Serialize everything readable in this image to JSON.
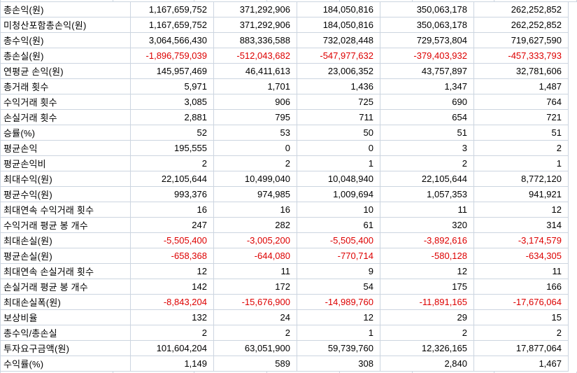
{
  "colors": {
    "negative_text": "#dd0000",
    "default_text": "#000000",
    "gridline": "#ccd5e0",
    "background": "#ffffff"
  },
  "table": {
    "rows": [
      {
        "label": "총손익(원)",
        "values": [
          "1,167,659,752",
          "371,292,906",
          "184,050,816",
          "350,063,178",
          "262,252,852"
        ]
      },
      {
        "label": "미청산포함총손익(원)",
        "values": [
          "1,167,659,752",
          "371,292,906",
          "184,050,816",
          "350,063,178",
          "262,252,852"
        ]
      },
      {
        "label": "총수익(원)",
        "values": [
          "3,064,566,430",
          "883,336,588",
          "732,028,448",
          "729,573,804",
          "719,627,590"
        ]
      },
      {
        "label": "총손실(원)",
        "values": [
          "-1,896,759,039",
          "-512,043,682",
          "-547,977,632",
          "-379,403,932",
          "-457,333,793"
        ]
      },
      {
        "label": "연평균 손익(원)",
        "values": [
          "145,957,469",
          "46,411,613",
          "23,006,352",
          "43,757,897",
          "32,781,606"
        ]
      },
      {
        "label": "총거래 횟수",
        "values": [
          "5,971",
          "1,701",
          "1,436",
          "1,347",
          "1,487"
        ]
      },
      {
        "label": "수익거래 횟수",
        "values": [
          "3,085",
          "906",
          "725",
          "690",
          "764"
        ]
      },
      {
        "label": "손실거래 횟수",
        "values": [
          "2,881",
          "795",
          "711",
          "654",
          "721"
        ]
      },
      {
        "label": "승률(%)",
        "values": [
          "52",
          "53",
          "50",
          "51",
          "51"
        ]
      },
      {
        "label": "평균손익",
        "values": [
          "195,555",
          "0",
          "0",
          "3",
          "2"
        ]
      },
      {
        "label": "평균손익비",
        "values": [
          "2",
          "2",
          "1",
          "2",
          "1"
        ]
      },
      {
        "label": "최대수익(원)",
        "values": [
          "22,105,644",
          "10,499,040",
          "10,048,940",
          "22,105,644",
          "8,772,120"
        ]
      },
      {
        "label": "평균수익(원)",
        "values": [
          "993,376",
          "974,985",
          "1,009,694",
          "1,057,353",
          "941,921"
        ]
      },
      {
        "label": "최대연속 수익거래 횟수",
        "values": [
          "16",
          "16",
          "10",
          "11",
          "12"
        ]
      },
      {
        "label": "수익거래 평균 봉 개수",
        "values": [
          "247",
          "282",
          "61",
          "320",
          "314"
        ]
      },
      {
        "label": "최대손실(원)",
        "values": [
          "-5,505,400",
          "-3,005,200",
          "-5,505,400",
          "-3,892,616",
          "-3,174,579"
        ]
      },
      {
        "label": "평균손실(원)",
        "values": [
          "-658,368",
          "-644,080",
          "-770,714",
          "-580,128",
          "-634,305"
        ]
      },
      {
        "label": "최대연속 손실거래 횟수",
        "values": [
          "12",
          "11",
          "9",
          "12",
          "11"
        ]
      },
      {
        "label": "손실거래 평균 봉 개수",
        "values": [
          "142",
          "172",
          "54",
          "175",
          "166"
        ]
      },
      {
        "label": "최대손실폭(원)",
        "values": [
          "-8,843,204",
          "-15,676,900",
          "-14,989,760",
          "-11,891,165",
          "-17,676,064"
        ]
      },
      {
        "label": "보상비율",
        "values": [
          "132",
          "24",
          "12",
          "29",
          "15"
        ]
      },
      {
        "label": "총수익/총손실",
        "values": [
          "2",
          "2",
          "1",
          "2",
          "2"
        ]
      },
      {
        "label": "투자요구금액(원)",
        "values": [
          "101,604,204",
          "63,051,900",
          "59,739,760",
          "12,326,165",
          "17,877,064"
        ]
      },
      {
        "label": "수익률(%)",
        "values": [
          "1,149",
          "589",
          "308",
          "2,840",
          "1,467"
        ]
      }
    ]
  }
}
